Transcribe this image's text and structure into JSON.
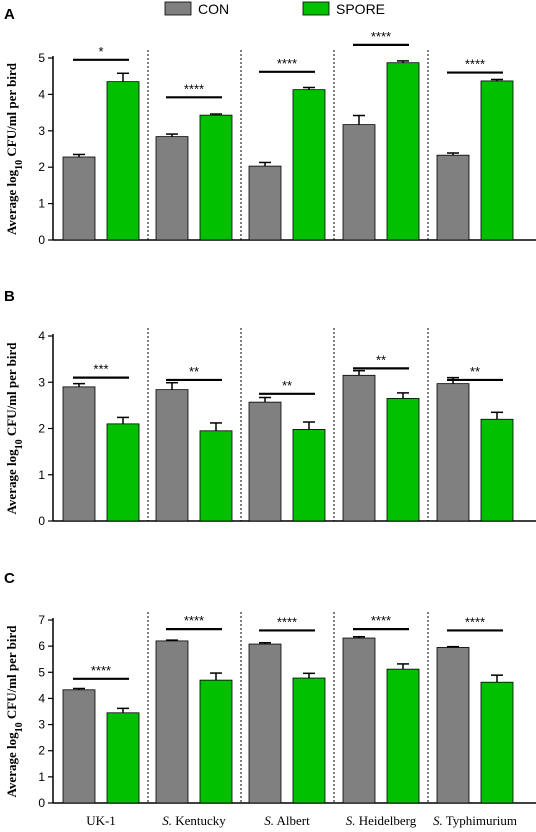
{
  "legend": {
    "entries": [
      {
        "label": "CON",
        "color": "#808080"
      },
      {
        "label": "SPORE",
        "color": "#00c000"
      }
    ]
  },
  "colors": {
    "con": "#808080",
    "spore": "#00c000",
    "axis": "#000000"
  },
  "chart_data": [
    {
      "panel": "A",
      "type": "bar",
      "ylabel": "Average log10 CFU/ml per bird",
      "ylabel_main": "Average log",
      "ylabel_sub": "10",
      "ylabel_rest": " CFU/ml per bird",
      "ylim": [
        0,
        5
      ],
      "yticks": [
        0,
        1,
        2,
        3,
        4,
        5
      ],
      "categories": [
        "UK-1",
        "S. Kentucky",
        "S. Albert",
        "S. Heidelberg",
        "S. Typhimurium"
      ],
      "series": [
        {
          "name": "CON",
          "values": [
            2.28,
            2.84,
            2.03,
            3.17,
            2.33
          ],
          "errors": [
            0.07,
            0.07,
            0.1,
            0.25,
            0.06
          ]
        },
        {
          "name": "SPORE",
          "values": [
            4.35,
            3.43,
            4.13,
            4.87,
            4.37
          ],
          "errors": [
            0.23,
            0.03,
            0.06,
            0.05,
            0.04
          ]
        }
      ],
      "significance": [
        "*",
        "****",
        "****",
        "****",
        "****"
      ],
      "sig_bar_y": [
        4.95,
        3.92,
        4.62,
        5.36,
        4.6
      ]
    },
    {
      "panel": "B",
      "type": "bar",
      "ylabel": "Average log10 CFU/ml per bird",
      "ylabel_main": "Average log",
      "ylabel_sub": "10",
      "ylabel_rest": " CFU/ml per bird",
      "ylim": [
        0,
        4
      ],
      "yticks": [
        0,
        1,
        2,
        3,
        4
      ],
      "categories": [
        "UK-1",
        "S. Kentucky",
        "S. Albert",
        "S. Heidelberg",
        "S. Typhimurium"
      ],
      "series": [
        {
          "name": "CON",
          "values": [
            2.9,
            2.84,
            2.57,
            3.15,
            2.97
          ],
          "errors": [
            0.07,
            0.15,
            0.1,
            0.1,
            0.13
          ]
        },
        {
          "name": "SPORE",
          "values": [
            2.1,
            1.95,
            1.98,
            2.65,
            2.2
          ],
          "errors": [
            0.14,
            0.17,
            0.16,
            0.12,
            0.15
          ]
        }
      ],
      "significance": [
        "***",
        "**",
        "**",
        "**",
        "**"
      ],
      "sig_bar_y": [
        3.1,
        3.05,
        2.75,
        3.3,
        3.05
      ]
    },
    {
      "panel": "C",
      "type": "bar",
      "ylabel": "Average log10 CFU/ml per bird",
      "ylabel_main": "Average log",
      "ylabel_sub": "10",
      "ylabel_rest": " CFU/ml per bird",
      "ylim": [
        0,
        7
      ],
      "yticks": [
        0,
        1,
        2,
        3,
        4,
        5,
        6,
        7
      ],
      "categories": [
        "UK-1",
        "S. Kentucky",
        "S. Albert",
        "S. Heidelberg",
        "S. Typhimurium"
      ],
      "series": [
        {
          "name": "CON",
          "values": [
            4.33,
            6.2,
            6.08,
            6.31,
            5.95
          ],
          "errors": [
            0.05,
            0.03,
            0.05,
            0.05,
            0.03
          ]
        },
        {
          "name": "SPORE",
          "values": [
            3.45,
            4.7,
            4.78,
            5.12,
            4.62
          ],
          "errors": [
            0.17,
            0.27,
            0.18,
            0.2,
            0.27
          ]
        }
      ],
      "significance": [
        "****",
        "****",
        "****",
        "****",
        "****"
      ],
      "sig_bar_y": [
        4.75,
        6.65,
        6.6,
        6.65,
        6.6
      ]
    }
  ],
  "category_labels": [
    {
      "italic": "",
      "rest": "UK-1"
    },
    {
      "italic": "S.",
      "rest": " Kentucky"
    },
    {
      "italic": "S.",
      "rest": " Albert"
    },
    {
      "italic": "S.",
      "rest": " Heidelberg"
    },
    {
      "italic": "S.",
      "rest": " Typhimurium"
    }
  ]
}
